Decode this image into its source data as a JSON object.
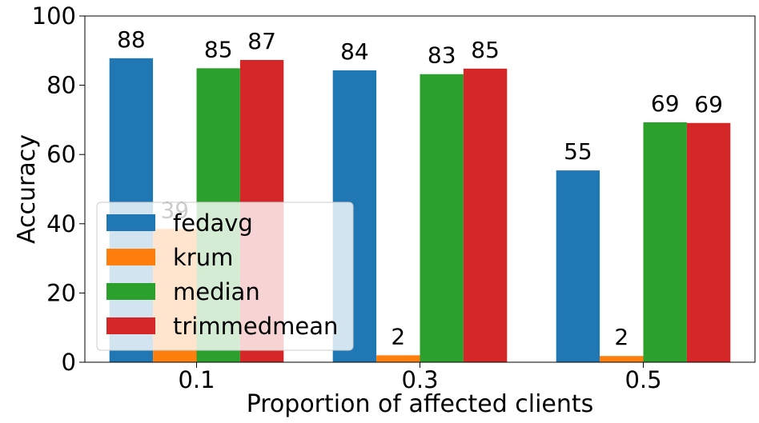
{
  "chart_data": {
    "type": "bar",
    "categories": [
      "0.1",
      "0.3",
      "0.5"
    ],
    "series": [
      {
        "name": "fedavg",
        "color": "#1f77b4",
        "values": [
          87.8,
          84.3,
          55.4
        ],
        "labels": [
          "88",
          "84",
          "55"
        ]
      },
      {
        "name": "krum",
        "color": "#ff7f0e",
        "values": [
          38.5,
          2.0,
          1.8
        ],
        "labels": [
          "39",
          "2",
          "2"
        ]
      },
      {
        "name": "median",
        "color": "#2ca02c",
        "values": [
          84.9,
          83.2,
          69.3
        ],
        "labels": [
          "85",
          "83",
          "69"
        ]
      },
      {
        "name": "trimmedmean",
        "color": "#d62728",
        "values": [
          87.3,
          84.8,
          69.1
        ],
        "labels": [
          "87",
          "85",
          "69"
        ]
      }
    ],
    "xlabel": "Proportion of affected clients",
    "ylabel": "Accuracy",
    "ylim": [
      0,
      100
    ],
    "yticks": [
      "0",
      "20",
      "40",
      "60",
      "80",
      "100"
    ],
    "grid": false,
    "legend_position": "lower-left"
  }
}
